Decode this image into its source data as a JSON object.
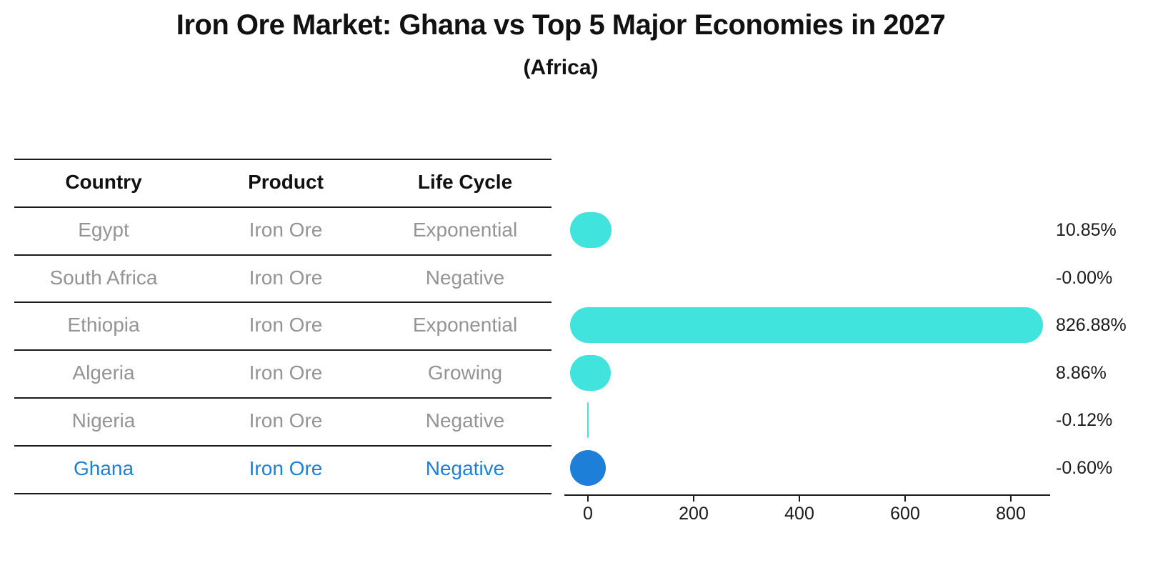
{
  "title": "Iron Ore Market: Ghana vs Top 5 Major Economies in 2027",
  "subtitle": "(Africa)",
  "table": {
    "headers": {
      "country": "Country",
      "product": "Product",
      "life_cycle": "Life Cycle"
    },
    "rows": [
      {
        "country": "Egypt",
        "product": "Iron Ore",
        "life_cycle": "Exponential",
        "highlight": false
      },
      {
        "country": "South Africa",
        "product": "Iron Ore",
        "life_cycle": "Negative",
        "highlight": false
      },
      {
        "country": "Ethiopia",
        "product": "Iron Ore",
        "life_cycle": "Exponential",
        "highlight": false
      },
      {
        "country": "Algeria",
        "product": "Iron Ore",
        "life_cycle": "Growing",
        "highlight": false
      },
      {
        "country": "Nigeria",
        "product": "Iron Ore",
        "life_cycle": "Negative",
        "highlight": false
      },
      {
        "country": "Ghana",
        "product": "Iron Ore",
        "life_cycle": "Negative",
        "highlight": true
      }
    ]
  },
  "chart_data": {
    "type": "bar",
    "orientation": "horizontal",
    "categories": [
      "Egypt",
      "South Africa",
      "Ethiopia",
      "Algeria",
      "Nigeria",
      "Ghana"
    ],
    "values": [
      10.85,
      -0.0,
      826.88,
      8.86,
      -0.12,
      -0.6
    ],
    "value_labels": [
      "10.85%",
      "-0.00%",
      "826.88%",
      "8.86%",
      "-0.12%",
      "-0.60%"
    ],
    "shapes": [
      "pill",
      "none",
      "pill",
      "pill",
      "vline",
      "circle"
    ],
    "x_ticks": [
      0,
      200,
      400,
      600,
      800
    ],
    "x_tick_labels": [
      "0",
      "200",
      "400",
      "600",
      "800"
    ],
    "xlim": [
      -45,
      875
    ],
    "grid": false,
    "legend": "none",
    "bar_color": "#40E4DC",
    "highlight_color": "#1E7FD8",
    "highlight_index": 5
  },
  "colors": {
    "bar_cyan": "#40E4DC",
    "highlight_blue": "#1E7FD8",
    "muted_text": "#949494",
    "ink": "#111111"
  }
}
